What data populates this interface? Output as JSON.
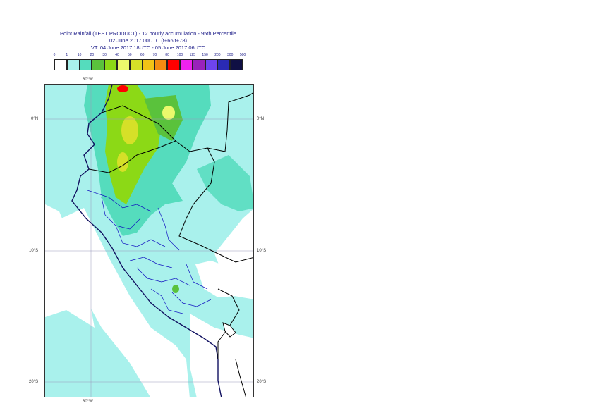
{
  "header": {
    "title": "Point Rainfall (TEST PRODUCT) - 12 hourly accumulation - 95th Percentile",
    "base_time": "02 June 2017 00UTC (t+66,t+78)",
    "valid_time": "VT: 04 June 2017 18UTC - 05 June 2017 06UTC"
  },
  "legend": {
    "ticks": [
      "0",
      "1",
      "10",
      "20",
      "30",
      "40",
      "50",
      "60",
      "70",
      "80",
      "100",
      "125",
      "150",
      "200",
      "300",
      "500"
    ],
    "colors": [
      "#ffffff",
      "#a9f1ec",
      "#55dcbd",
      "#5ac23c",
      "#8cd916",
      "#ebf96c",
      "#d6e028",
      "#f2c316",
      "#f48c12",
      "#ff0000",
      "#ee22ee",
      "#9922bb",
      "#6e44ee",
      "#2a2ab4",
      "#101044"
    ]
  },
  "map": {
    "lon_labels_top": [
      "80°W"
    ],
    "lon_labels_bottom": [
      "80°W"
    ],
    "lat_labels_left": [
      "0°N",
      "10°S",
      "20°S"
    ],
    "lat_labels_right": [
      "0°N",
      "10°S",
      "20°S"
    ],
    "colors": {
      "ocean_rain": "#a9f1ec",
      "green": "#55dcbd",
      "yellowgreen": "#8cd916",
      "yellow": "#d6e028",
      "red": "#ff0000",
      "coast": "#101060",
      "border": "#000000",
      "admin": "#1010c0",
      "grid": "#9999bb"
    }
  }
}
